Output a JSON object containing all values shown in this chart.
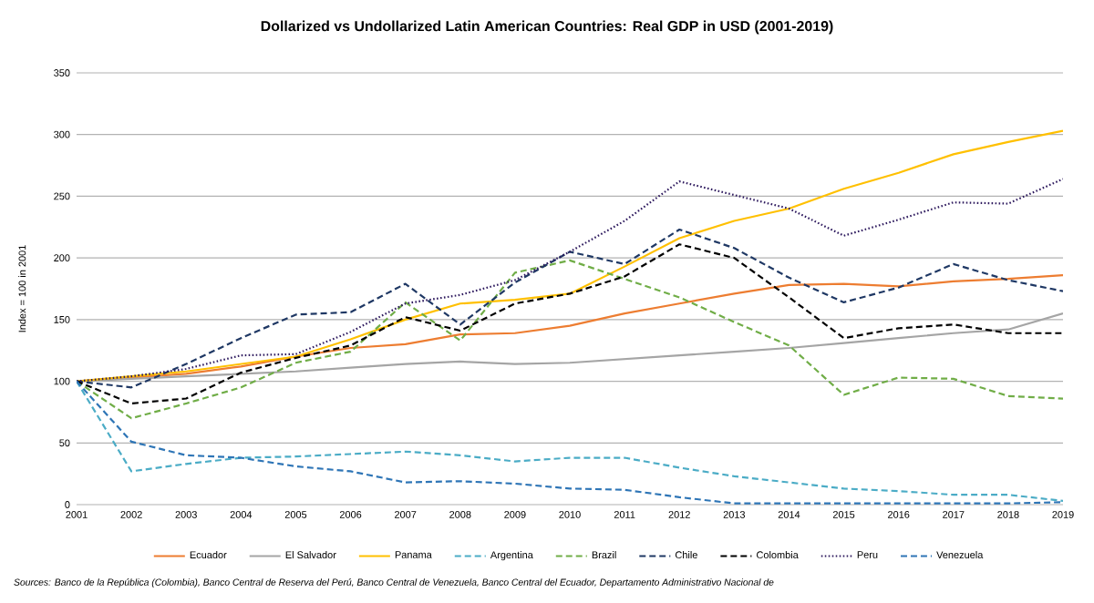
{
  "chart_data": {
    "type": "line",
    "title": "Dollarized vs Undollarized Latin American Countries: Real GDP in USD (2001-2019)",
    "ylabel": "Index = 100 in 2001",
    "categories": [
      "2001",
      "2002",
      "2003",
      "2004",
      "2005",
      "2006",
      "2007",
      "2008",
      "2009",
      "2010",
      "2011",
      "2012",
      "2013",
      "2014",
      "2015",
      "2016",
      "2017",
      "2018",
      "2019"
    ],
    "series": [
      {
        "name": "Ecuador",
        "color": "#ed7d31",
        "line_style": "solid",
        "values": [
          100,
          103,
          106,
          112,
          120,
          127,
          130,
          138,
          139,
          145,
          155,
          163,
          171,
          178,
          179,
          177,
          181,
          183,
          186
        ]
      },
      {
        "name": "El Salvador",
        "color": "#a5a5a5",
        "line_style": "solid",
        "values": [
          100,
          102,
          104,
          106,
          108,
          111,
          114,
          116,
          114,
          115,
          118,
          121,
          124,
          127,
          131,
          135,
          139,
          142,
          155
        ]
      },
      {
        "name": "Panama",
        "color": "#ffc000",
        "line_style": "solid",
        "values": [
          100,
          104,
          108,
          114,
          120,
          134,
          150,
          163,
          166,
          171,
          193,
          216,
          230,
          240,
          256,
          269,
          284,
          294,
          303
        ]
      },
      {
        "name": "Argentina",
        "color": "#4bacc6",
        "line_style": "dashed",
        "values": [
          100,
          27,
          33,
          38,
          39,
          41,
          43,
          40,
          35,
          38,
          38,
          30,
          23,
          18,
          13,
          11,
          8,
          8,
          3
        ]
      },
      {
        "name": "Brazil",
        "color": "#70ad47",
        "line_style": "dashed",
        "values": [
          100,
          70,
          82,
          95,
          115,
          124,
          164,
          133,
          188,
          198,
          183,
          168,
          148,
          129,
          89,
          103,
          102,
          88,
          86
        ]
      },
      {
        "name": "Chile",
        "color": "#1f3864",
        "line_style": "dashed",
        "values": [
          100,
          95,
          114,
          135,
          154,
          156,
          179,
          146,
          180,
          205,
          195,
          223,
          208,
          184,
          164,
          176,
          195,
          182,
          173
        ]
      },
      {
        "name": "Colombia",
        "color": "#000000",
        "line_style": "dashed",
        "values": [
          100,
          82,
          86,
          107,
          119,
          129,
          152,
          141,
          163,
          171,
          185,
          211,
          200,
          168,
          135,
          143,
          146,
          139,
          139
        ]
      },
      {
        "name": "Peru",
        "color": "#2e1a5e",
        "line_style": "dotted",
        "values": [
          100,
          104,
          110,
          121,
          122,
          140,
          163,
          170,
          182,
          205,
          230,
          262,
          251,
          240,
          218,
          231,
          245,
          244,
          264
        ]
      },
      {
        "name": "Venezuela",
        "color": "#2e75b6",
        "line_style": "dashed",
        "values": [
          100,
          51,
          40,
          38,
          31,
          27,
          18,
          19,
          17,
          13,
          12,
          6,
          1,
          1,
          1,
          1,
          1,
          1,
          2
        ]
      }
    ],
    "ylim": [
      0,
      350
    ],
    "yticks": [
      0,
      50,
      100,
      150,
      200,
      250,
      300,
      350
    ],
    "grid": "y",
    "legend": "bottom",
    "marker": "none",
    "annotations": [
      "Sources: Banco de la República (Colombia), Banco Central de Reserva del Perú, Banco Central de Venezuela, Banco Central del Ecuador, Departamento Administrativo Nacional de"
    ]
  }
}
